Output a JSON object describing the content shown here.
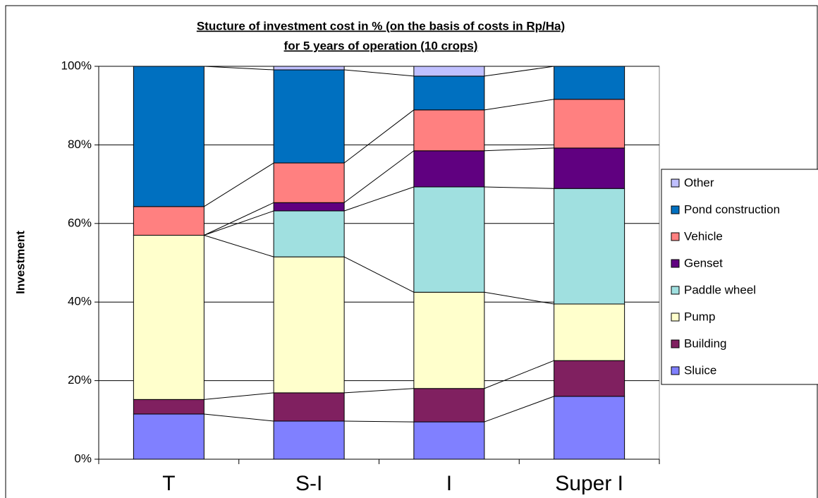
{
  "chart_data": {
    "type": "stacked_bar",
    "title": [
      "Stucture of investment cost in % (on the basis of costs in Rp/Ha)",
      "for 5 years of operation (10 crops)"
    ],
    "y_label": "Investment",
    "categories": [
      "T",
      "S-I",
      "I",
      "Super I"
    ],
    "series": [
      {
        "name": "Sluice",
        "color": "#8080ff",
        "values": [
          11.5,
          9.7,
          9.5,
          16.0
        ]
      },
      {
        "name": "Building",
        "color": "#802060",
        "values": [
          3.7,
          7.2,
          8.5,
          9.1
        ]
      },
      {
        "name": "Pump",
        "color": "#ffffcc",
        "values": [
          41.8,
          34.6,
          24.5,
          14.4
        ]
      },
      {
        "name": "Paddle wheel",
        "color": "#a0e0e0",
        "values": [
          0,
          11.7,
          26.8,
          29.4
        ]
      },
      {
        "name": "Genset",
        "color": "#600080",
        "values": [
          0,
          2.1,
          9.2,
          10.3
        ]
      },
      {
        "name": "Vehicle",
        "color": "#ff8080",
        "values": [
          7.3,
          10.1,
          10.4,
          12.4
        ]
      },
      {
        "name": "Pond construction",
        "color": "#0070c0",
        "values": [
          35.7,
          23.7,
          8.6,
          8.4
        ]
      },
      {
        "name": "Other",
        "color": "#c0c0ff",
        "values": [
          0,
          0.9,
          2.5,
          0
        ]
      }
    ],
    "ylim": [
      0,
      100
    ],
    "yticks": [
      {
        "value": 0,
        "label": "0%"
      },
      {
        "value": 20,
        "label": "20%"
      },
      {
        "value": 40,
        "label": "40%"
      },
      {
        "value": 60,
        "label": "60%"
      },
      {
        "value": 80,
        "label": "80%"
      },
      {
        "value": 100,
        "label": "100%"
      }
    ],
    "grid": true,
    "legend": "right"
  }
}
